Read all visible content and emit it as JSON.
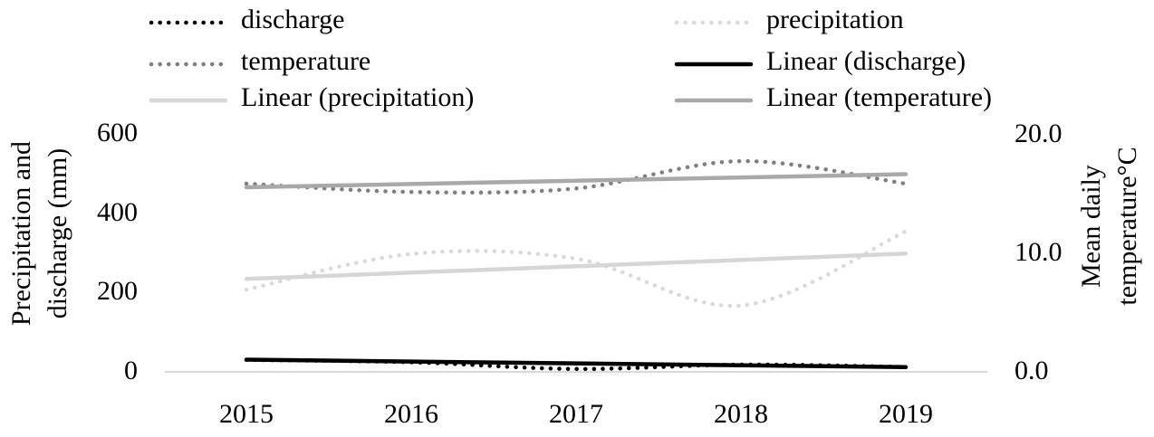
{
  "chart_data": {
    "type": "line",
    "title": "",
    "categories": [
      "2015",
      "2016",
      "2017",
      "2018",
      "2019"
    ],
    "left_axis": {
      "title_lines": [
        "Precipitation and",
        "discharge (mm)"
      ],
      "ticks": [
        "600",
        "400",
        "200",
        "0"
      ],
      "range": [
        0,
        600
      ],
      "grid": false
    },
    "right_axis": {
      "title_lines": [
        "Mean daily",
        "temperature°C"
      ],
      "ticks": [
        "20.0",
        "10.0",
        "0.0"
      ],
      "range": [
        0,
        20
      ],
      "grid": false
    },
    "legend_position": "top",
    "series": [
      {
        "name": "discharge",
        "axis": "left",
        "style": "dotted",
        "color": "#000000",
        "values": [
          28,
          22,
          5,
          16,
          10
        ]
      },
      {
        "name": "precipitation",
        "axis": "left",
        "style": "dotted",
        "color": "#d9d9d9",
        "values": [
          205,
          295,
          283,
          165,
          352
        ]
      },
      {
        "name": "temperature",
        "axis": "right",
        "style": "dotted",
        "color": "#7f7f7f",
        "values": [
          15.8,
          15.1,
          15.4,
          17.7,
          15.8
        ]
      },
      {
        "name": "Linear (discharge)",
        "axis": "left",
        "style": "solid",
        "color": "#000000",
        "trend": [
          28.5,
          9.5
        ]
      },
      {
        "name": "Linear (precipitation)",
        "axis": "left",
        "style": "solid",
        "color": "#d6d6d6",
        "trend": [
          232,
          296
        ]
      },
      {
        "name": "Linear (temperature)",
        "axis": "right",
        "style": "solid",
        "color": "#a9a9a9",
        "trend": [
          15.5,
          16.6
        ]
      }
    ],
    "gridline_color": "#d9d9d9"
  }
}
